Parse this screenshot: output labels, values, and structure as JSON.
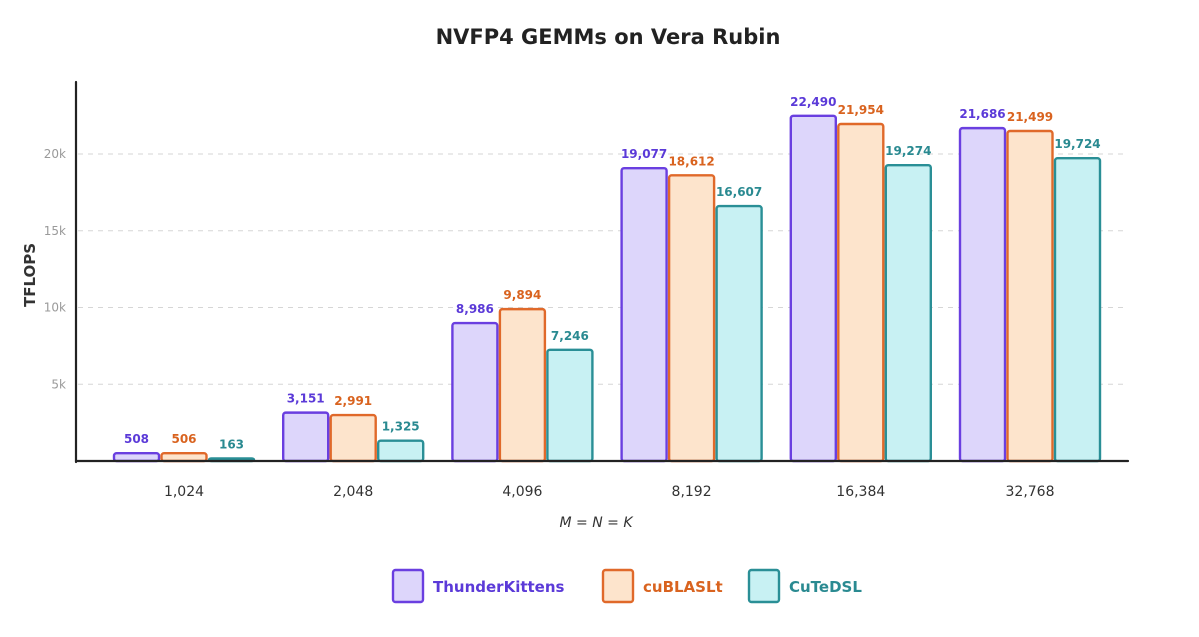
{
  "chart_data": {
    "type": "bar",
    "title": "NVFP4 GEMMs on Vera Rubin",
    "xlabel": "M = N = K",
    "ylabel": "TFLOPS",
    "categories": [
      "1,024",
      "2,048",
      "4,096",
      "8,192",
      "16,384",
      "32,768"
    ],
    "ylim": [
      0,
      25000
    ],
    "yticks": [
      5000,
      10000,
      15000,
      20000
    ],
    "ytick_labels": [
      "5k",
      "10k",
      "15k",
      "20k"
    ],
    "grid": "horizontal dashed",
    "legend_position": "bottom-center",
    "series": [
      {
        "name": "ThunderKittens",
        "values": [
          508,
          3151,
          8986,
          19077,
          22490,
          21686
        ],
        "labels": [
          "508",
          "3,151",
          "8,986",
          "19,077",
          "22,490",
          "21,686"
        ],
        "fill": "#ddd6fb",
        "stroke": "#6a3fe0",
        "text_color": "#5b3ad8"
      },
      {
        "name": "cuBLASLt",
        "values": [
          506,
          2991,
          9894,
          18612,
          21954,
          21499
        ],
        "labels": [
          "506",
          "2,991",
          "9,894",
          "18,612",
          "21,954",
          "21,499"
        ],
        "fill": "#fde4cc",
        "stroke": "#e0692a",
        "text_color": "#d9631f"
      },
      {
        "name": "CuTeDSL",
        "values": [
          163,
          1325,
          7246,
          16607,
          19274,
          19724
        ],
        "labels": [
          "163",
          "1,325",
          "7,246",
          "16,607",
          "19,274",
          "19,724"
        ],
        "fill": "#c8f1f3",
        "stroke": "#2a8f96",
        "text_color": "#2a8a91"
      }
    ]
  }
}
